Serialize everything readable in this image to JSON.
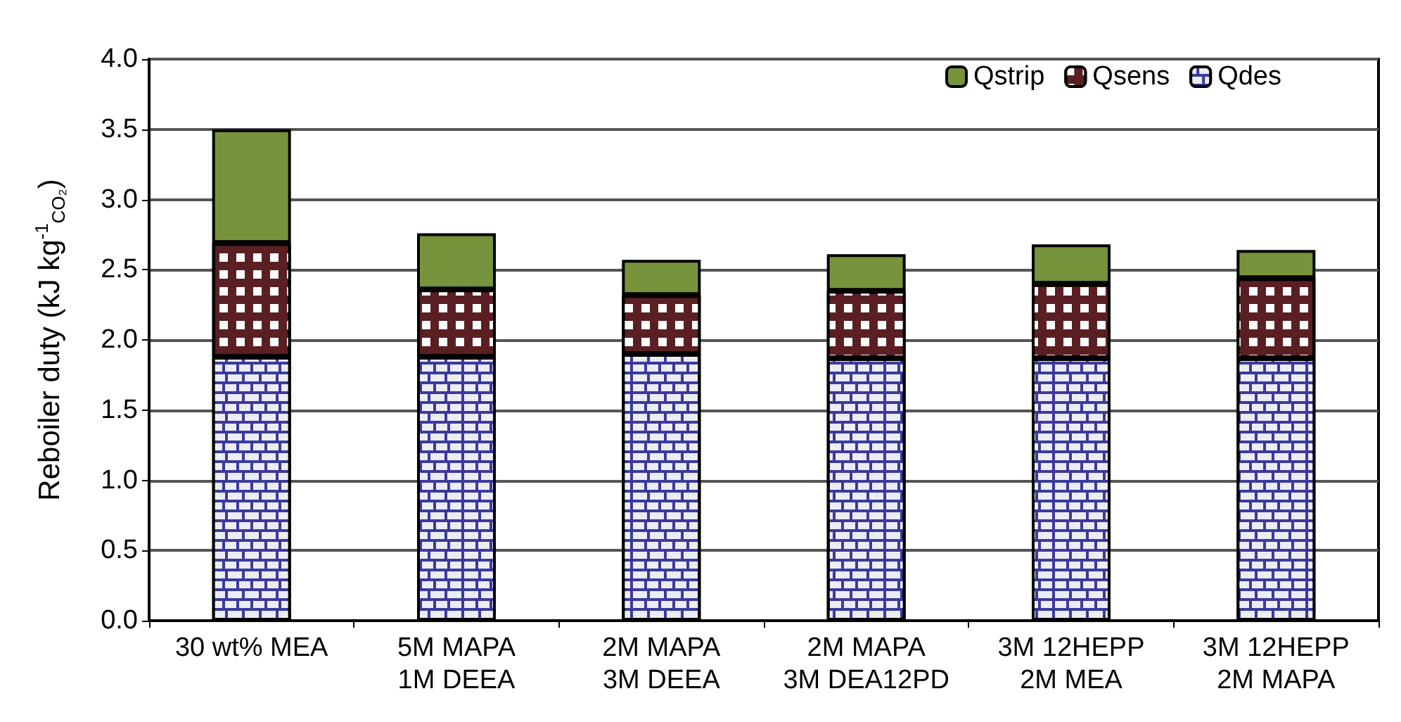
{
  "chart_data": {
    "type": "bar",
    "stacked": true,
    "ylabel": "Reboiler duty (kJ kg$^{-1}$$_{CO₂}$)",
    "categories": [
      "30 wt% MEA",
      "5M MAPA\n1M DEEA",
      "2M MAPA\n3M DEEA",
      "2M MAPA\n3M DEA12PD",
      "3M 12HEPP\n2M MEA",
      "3M 12HEPP\n2M MAPA"
    ],
    "series": [
      {
        "name": "Qdes",
        "color": "#3a3a9c",
        "values": [
          1.88,
          1.88,
          1.9,
          1.87,
          1.87,
          1.87
        ]
      },
      {
        "name": "Qsens",
        "color": "#5a1f22",
        "values": [
          0.81,
          0.48,
          0.42,
          0.48,
          0.53,
          0.57
        ]
      },
      {
        "name": "Qstrip",
        "color": "#77933c",
        "values": [
          0.81,
          0.4,
          0.25,
          0.26,
          0.28,
          0.2
        ]
      }
    ],
    "ylim": [
      0,
      4
    ],
    "yticks": [
      {
        "value": 0,
        "label": "0.0"
      },
      0.5,
      {
        "value": 1,
        "label": "1.0"
      },
      1.5,
      {
        "value": 2,
        "label": "2.0"
      },
      2.5,
      {
        "value": 3,
        "label": "3.0"
      },
      3.5,
      {
        "value": 4,
        "label": "4.0"
      }
    ],
    "grid": "y",
    "legend": "top right"
  }
}
